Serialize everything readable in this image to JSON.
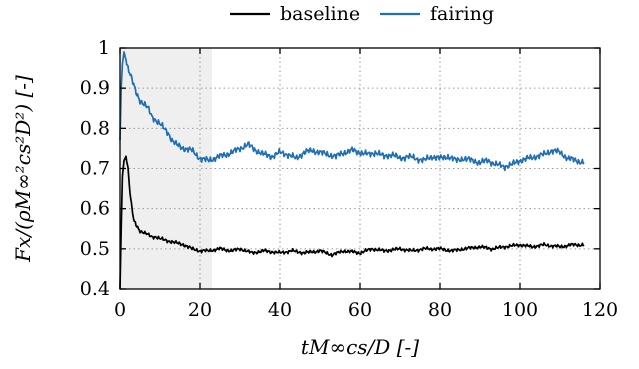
{
  "chart_data": {
    "type": "line",
    "xlabel": "tM∞cs/D [-]",
    "ylabel": "Fx/(ρM∞²cs²D²) [-]",
    "xlim": [
      0,
      120
    ],
    "ylim": [
      0.4,
      1.0
    ],
    "x_ticks": [
      0,
      20,
      40,
      60,
      80,
      100,
      120
    ],
    "y_ticks": [
      0.4,
      0.5,
      0.6,
      0.7,
      0.8,
      0.9,
      1.0
    ],
    "x_tick_labels": [
      "0",
      "20",
      "40",
      "60",
      "80",
      "100",
      "120"
    ],
    "y_tick_labels": [
      "0.4",
      "0.5",
      "0.6",
      "0.7",
      "0.8",
      "0.9",
      "1"
    ],
    "grid": true,
    "legend_position": "top",
    "shaded_region": {
      "x": [
        0,
        23
      ],
      "color": "#efefef"
    },
    "series": [
      {
        "name": "baseline",
        "color": "#000000",
        "points": [
          [
            0,
            0.4
          ],
          [
            0.3,
            0.55
          ],
          [
            0.6,
            0.68
          ],
          [
            1.0,
            0.72
          ],
          [
            1.5,
            0.73
          ],
          [
            2,
            0.7
          ],
          [
            2.5,
            0.64
          ],
          [
            3,
            0.6
          ],
          [
            3.5,
            0.57
          ],
          [
            4,
            0.56
          ],
          [
            5,
            0.545
          ],
          [
            6,
            0.54
          ],
          [
            7,
            0.535
          ],
          [
            8,
            0.53
          ],
          [
            9,
            0.53
          ],
          [
            10,
            0.525
          ],
          [
            12,
            0.52
          ],
          [
            14,
            0.515
          ],
          [
            16,
            0.51
          ],
          [
            18,
            0.5
          ],
          [
            20,
            0.495
          ],
          [
            22,
            0.495
          ],
          [
            25,
            0.5
          ],
          [
            28,
            0.495
          ],
          [
            30,
            0.5
          ],
          [
            33,
            0.49
          ],
          [
            36,
            0.495
          ],
          [
            40,
            0.49
          ],
          [
            43,
            0.495
          ],
          [
            46,
            0.49
          ],
          [
            50,
            0.495
          ],
          [
            53,
            0.485
          ],
          [
            56,
            0.495
          ],
          [
            60,
            0.49
          ],
          [
            63,
            0.5
          ],
          [
            66,
            0.495
          ],
          [
            70,
            0.5
          ],
          [
            73,
            0.495
          ],
          [
            76,
            0.5
          ],
          [
            80,
            0.5
          ],
          [
            83,
            0.495
          ],
          [
            86,
            0.5
          ],
          [
            90,
            0.505
          ],
          [
            93,
            0.5
          ],
          [
            96,
            0.505
          ],
          [
            100,
            0.51
          ],
          [
            103,
            0.505
          ],
          [
            106,
            0.51
          ],
          [
            110,
            0.505
          ],
          [
            113,
            0.51
          ],
          [
            116,
            0.51
          ]
        ]
      },
      {
        "name": "fairing",
        "color": "#1f6fb2",
        "points": [
          [
            0,
            0.77
          ],
          [
            0.3,
            0.9
          ],
          [
            0.6,
            0.96
          ],
          [
            1.0,
            0.99
          ],
          [
            1.5,
            0.97
          ],
          [
            2,
            0.95
          ],
          [
            3,
            0.92
          ],
          [
            4,
            0.89
          ],
          [
            5,
            0.87
          ],
          [
            6,
            0.86
          ],
          [
            7,
            0.85
          ],
          [
            8,
            0.83
          ],
          [
            9,
            0.82
          ],
          [
            10,
            0.81
          ],
          [
            11,
            0.8
          ],
          [
            12,
            0.79
          ],
          [
            13,
            0.77
          ],
          [
            14,
            0.76
          ],
          [
            15,
            0.755
          ],
          [
            16,
            0.75
          ],
          [
            18,
            0.745
          ],
          [
            20,
            0.725
          ],
          [
            22,
            0.72
          ],
          [
            25,
            0.73
          ],
          [
            28,
            0.74
          ],
          [
            30,
            0.75
          ],
          [
            32,
            0.76
          ],
          [
            34,
            0.745
          ],
          [
            36,
            0.735
          ],
          [
            38,
            0.73
          ],
          [
            40,
            0.74
          ],
          [
            42,
            0.735
          ],
          [
            44,
            0.725
          ],
          [
            46,
            0.74
          ],
          [
            48,
            0.745
          ],
          [
            50,
            0.74
          ],
          [
            52,
            0.735
          ],
          [
            54,
            0.73
          ],
          [
            56,
            0.74
          ],
          [
            58,
            0.745
          ],
          [
            60,
            0.74
          ],
          [
            62,
            0.735
          ],
          [
            64,
            0.74
          ],
          [
            66,
            0.73
          ],
          [
            68,
            0.735
          ],
          [
            70,
            0.725
          ],
          [
            72,
            0.73
          ],
          [
            74,
            0.725
          ],
          [
            76,
            0.72
          ],
          [
            78,
            0.73
          ],
          [
            80,
            0.725
          ],
          [
            82,
            0.73
          ],
          [
            84,
            0.72
          ],
          [
            86,
            0.725
          ],
          [
            88,
            0.72
          ],
          [
            90,
            0.715
          ],
          [
            92,
            0.72
          ],
          [
            94,
            0.71
          ],
          [
            96,
            0.705
          ],
          [
            98,
            0.71
          ],
          [
            100,
            0.72
          ],
          [
            102,
            0.725
          ],
          [
            104,
            0.73
          ],
          [
            106,
            0.735
          ],
          [
            108,
            0.745
          ],
          [
            110,
            0.74
          ],
          [
            112,
            0.725
          ],
          [
            114,
            0.72
          ],
          [
            116,
            0.715
          ]
        ]
      }
    ]
  }
}
